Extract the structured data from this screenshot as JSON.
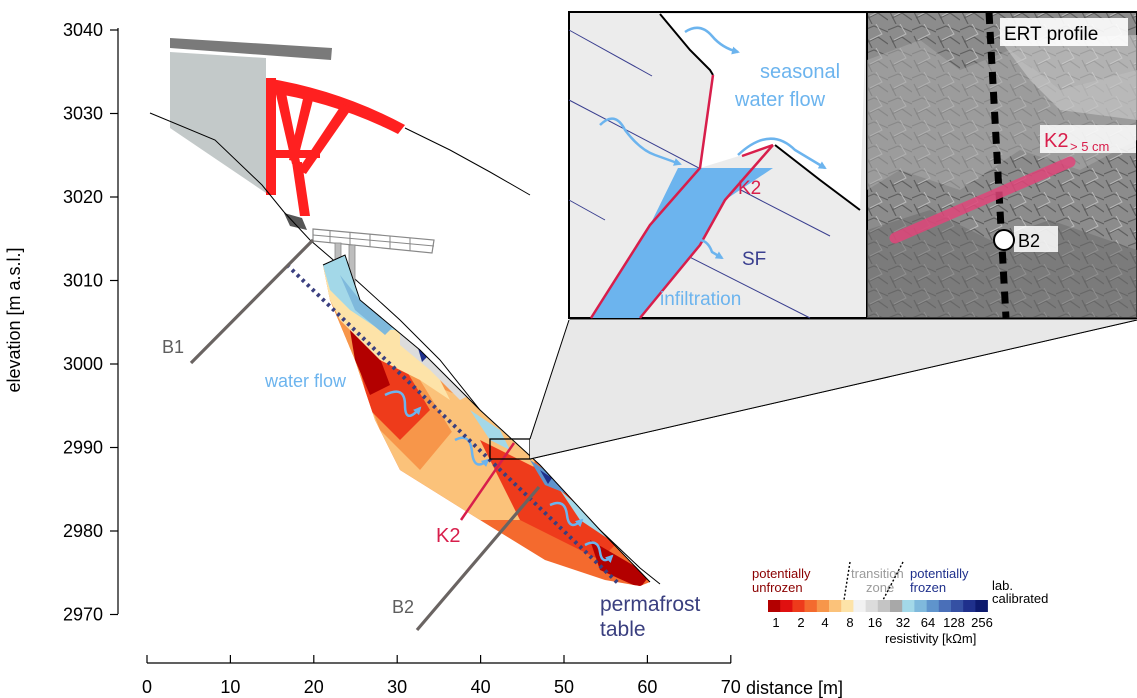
{
  "chart_data": {
    "type": "diagram",
    "y_axis": {
      "label": "elevation [m a.s.l.]",
      "ticks": [
        "3040",
        "3030",
        "3020",
        "3010",
        "3000",
        "2990",
        "2980",
        "2970"
      ]
    },
    "x_axis": {
      "label": "distance [m]",
      "ticks": [
        "0",
        "10",
        "20",
        "30",
        "40",
        "50",
        "60",
        "70"
      ]
    },
    "labels": {
      "b1": "B1",
      "b2": "B2",
      "k2": "K2",
      "water_flow": "water flow",
      "permafrost_line1": "permafrost",
      "permafrost_line2": "table"
    },
    "inset_sketch": {
      "seasonal_line1": "seasonal",
      "seasonal_line2": "water flow",
      "k2": "K2",
      "sf": "SF",
      "infiltration": "infiltration"
    },
    "inset_photo": {
      "ert_profile": "ERT profile",
      "k2": "K2",
      "k2_sub": "> 5 cm",
      "b2": "B2"
    },
    "legend": {
      "unfrozen_line1": "potentially",
      "unfrozen_line2": "unfrozen",
      "transition_line1": "transition",
      "transition_line2": "zone",
      "frozen_line1": "potentially",
      "frozen_line2": "frozen",
      "lab_line1": "lab.",
      "lab_line2": "calibrated",
      "tick_labels": [
        "1",
        "2",
        "4",
        "8",
        "16",
        "32",
        "64",
        "128",
        "256"
      ],
      "unit_label": "resistivity [kΩm]",
      "colors": [
        "#b30000",
        "#e01010",
        "#ee3b1b",
        "#f46a2e",
        "#f7964a",
        "#fbc27a",
        "#fde3a8",
        "#f2f2f2",
        "#dcdcdc",
        "#c4c4c4",
        "#a8a8a8",
        "#a3d8e8",
        "#7fb9dc",
        "#5f94cc",
        "#4a6fb8",
        "#3550a3",
        "#1f308c",
        "#0d1a6e"
      ]
    },
    "colors": {
      "k2": "#d81e4b",
      "water": "#6cb4ee",
      "permafrost": "#3a3f7f",
      "borehole": "#6a6462",
      "station": "#ff2020"
    }
  }
}
